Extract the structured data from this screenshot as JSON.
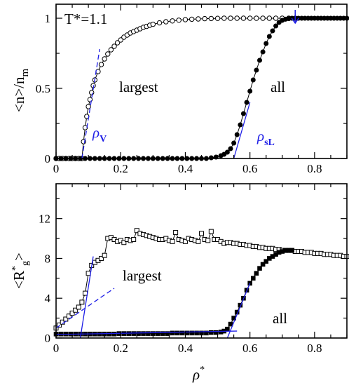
{
  "colors": {
    "fit": "#1e1ee6",
    "axis": "#000000"
  },
  "chart_data": [
    {
      "type": "line",
      "ylabel": "<n>/n",
      "ylabel_sub": "m",
      "xlim": [
        0,
        0.9
      ],
      "ylim": [
        0,
        1.1
      ],
      "xticks": [
        "0",
        "0.2",
        "0.4",
        "0.6",
        "0.8"
      ],
      "yticks": [
        "0",
        "0.5",
        "1"
      ],
      "temp_label": "T*=1.1",
      "labels": {
        "largest": "largest",
        "all": "all",
        "rho_v": "ρ",
        "rho_v_sub": "V",
        "rho_sl": "ρ",
        "rho_sl_sub": "sL"
      },
      "series": [
        {
          "name": "largest",
          "marker": "open-circle",
          "x": [
            0.0,
            0.01,
            0.02,
            0.03,
            0.04,
            0.05,
            0.06,
            0.07,
            0.08,
            0.085,
            0.09,
            0.095,
            0.1,
            0.105,
            0.11,
            0.115,
            0.12,
            0.13,
            0.14,
            0.15,
            0.16,
            0.17,
            0.18,
            0.19,
            0.2,
            0.21,
            0.22,
            0.23,
            0.24,
            0.25,
            0.26,
            0.27,
            0.28,
            0.29,
            0.3,
            0.32,
            0.34,
            0.36,
            0.38,
            0.4,
            0.42,
            0.44,
            0.46,
            0.48,
            0.5,
            0.52,
            0.54,
            0.56,
            0.58,
            0.6,
            0.62,
            0.64,
            0.66,
            0.68,
            0.7,
            0.72,
            0.74
          ],
          "y": [
            0.0,
            0.0,
            0.0,
            0.0,
            0.0,
            0.0,
            0.0,
            0.0,
            0.0,
            0.12,
            0.22,
            0.3,
            0.37,
            0.42,
            0.47,
            0.52,
            0.56,
            0.62,
            0.67,
            0.71,
            0.745,
            0.775,
            0.8,
            0.825,
            0.845,
            0.865,
            0.88,
            0.895,
            0.905,
            0.915,
            0.925,
            0.935,
            0.942,
            0.95,
            0.957,
            0.967,
            0.975,
            0.981,
            0.986,
            0.99,
            0.993,
            0.995,
            0.997,
            0.998,
            0.999,
            1.0,
            1.0,
            1.0,
            1.0,
            1.0,
            1.0,
            1.0,
            1.0,
            1.0,
            1.0,
            1.0,
            1.0
          ]
        },
        {
          "name": "all",
          "marker": "filled-circle",
          "x": [
            0.0,
            0.015,
            0.03,
            0.045,
            0.06,
            0.075,
            0.09,
            0.105,
            0.12,
            0.135,
            0.15,
            0.165,
            0.18,
            0.195,
            0.21,
            0.225,
            0.24,
            0.255,
            0.27,
            0.285,
            0.3,
            0.315,
            0.33,
            0.345,
            0.36,
            0.375,
            0.39,
            0.405,
            0.42,
            0.435,
            0.45,
            0.465,
            0.48,
            0.495,
            0.51,
            0.52,
            0.53,
            0.54,
            0.55,
            0.56,
            0.57,
            0.58,
            0.59,
            0.6,
            0.61,
            0.62,
            0.63,
            0.64,
            0.65,
            0.66,
            0.67,
            0.68,
            0.69,
            0.7,
            0.71,
            0.72,
            0.73,
            0.74,
            0.75,
            0.76,
            0.77,
            0.78,
            0.79,
            0.8,
            0.81,
            0.82,
            0.83,
            0.84,
            0.85,
            0.86,
            0.87,
            0.88,
            0.89,
            0.9
          ],
          "y": [
            0.0,
            0.0,
            0.0,
            0.0,
            0.0,
            0.0,
            0.0,
            0.0,
            0.0,
            0.0,
            0.0,
            0.0,
            0.0,
            0.0,
            0.0,
            0.0,
            0.0,
            0.0,
            0.0,
            0.0,
            0.0,
            0.0,
            0.0,
            0.0,
            0.0,
            0.0,
            0.0,
            0.0,
            0.0,
            0.0,
            0.0,
            0.0,
            0.005,
            0.01,
            0.02,
            0.03,
            0.045,
            0.07,
            0.11,
            0.17,
            0.24,
            0.32,
            0.4,
            0.48,
            0.56,
            0.63,
            0.7,
            0.76,
            0.82,
            0.87,
            0.91,
            0.945,
            0.97,
            0.985,
            0.993,
            0.997,
            1.0,
            1.0,
            1.0,
            1.0,
            1.0,
            1.0,
            1.0,
            1.0,
            1.0,
            1.0,
            1.0,
            1.0,
            1.0,
            1.0,
            1.0,
            1.0,
            1.0,
            1.0
          ]
        }
      ],
      "fit_lines": [
        {
          "style": "dashed",
          "x": [
            0.08,
            0.135
          ],
          "y": [
            0.0,
            0.78
          ]
        },
        {
          "style": "solid",
          "x": [
            0.55,
            0.6
          ],
          "y": [
            0.0,
            0.4
          ]
        }
      ],
      "arrow_x": 0.74
    },
    {
      "type": "line",
      "xlabel": "ρ",
      "ylabel": "<R",
      "xlim": [
        0,
        0.9
      ],
      "ylim": [
        0,
        15.5
      ],
      "xticks": [
        "0",
        "0.2",
        "0.4",
        "0.6",
        "0.8"
      ],
      "yticks": [
        "0",
        "4",
        "8",
        "12"
      ],
      "labels": {
        "largest": "largest",
        "all": "all"
      },
      "series": [
        {
          "name": "largest",
          "marker": "open-square",
          "x": [
            0.0,
            0.01,
            0.02,
            0.03,
            0.04,
            0.05,
            0.06,
            0.07,
            0.08,
            0.09,
            0.1,
            0.11,
            0.12,
            0.13,
            0.14,
            0.15,
            0.16,
            0.17,
            0.18,
            0.19,
            0.2,
            0.21,
            0.22,
            0.23,
            0.24,
            0.25,
            0.26,
            0.27,
            0.28,
            0.29,
            0.3,
            0.31,
            0.32,
            0.33,
            0.34,
            0.35,
            0.36,
            0.37,
            0.38,
            0.39,
            0.4,
            0.41,
            0.42,
            0.43,
            0.44,
            0.45,
            0.46,
            0.47,
            0.48,
            0.49,
            0.5,
            0.51,
            0.52,
            0.53,
            0.54,
            0.55,
            0.56,
            0.57,
            0.58,
            0.59,
            0.6,
            0.61,
            0.62,
            0.63,
            0.64,
            0.65,
            0.66,
            0.67,
            0.68,
            0.69,
            0.7,
            0.71,
            0.72,
            0.73,
            0.74,
            0.75,
            0.76,
            0.77,
            0.78,
            0.79,
            0.8,
            0.81,
            0.82,
            0.83,
            0.84,
            0.85,
            0.86,
            0.87,
            0.88,
            0.89,
            0.9
          ],
          "y": [
            1.0,
            1.3,
            1.6,
            1.9,
            2.2,
            2.5,
            2.8,
            3.1,
            3.6,
            4.5,
            6.5,
            7.3,
            7.6,
            7.8,
            8.0,
            8.3,
            10.0,
            10.1,
            9.9,
            9.7,
            9.8,
            9.6,
            9.9,
            9.8,
            9.9,
            10.8,
            10.5,
            10.4,
            10.3,
            10.2,
            10.1,
            10.0,
            9.9,
            9.9,
            10.0,
            9.8,
            9.7,
            10.6,
            9.9,
            9.8,
            9.7,
            10.0,
            9.9,
            9.8,
            9.7,
            10.5,
            9.9,
            9.8,
            10.7,
            9.9,
            9.9,
            9.7,
            9.5,
            9.6,
            9.6,
            9.5,
            9.5,
            9.4,
            9.4,
            9.3,
            9.3,
            9.2,
            9.2,
            9.1,
            9.1,
            9.0,
            9.0,
            9.0,
            8.9,
            8.9,
            8.8,
            8.8,
            8.8,
            8.8,
            8.7,
            8.7,
            8.7,
            8.6,
            8.6,
            8.6,
            8.5,
            8.5,
            8.5,
            8.4,
            8.4,
            8.4,
            8.3,
            8.3,
            8.3,
            8.2,
            8.2
          ]
        },
        {
          "name": "all",
          "marker": "filled-square",
          "x": [
            0.0,
            0.015,
            0.03,
            0.045,
            0.06,
            0.075,
            0.09,
            0.105,
            0.12,
            0.135,
            0.15,
            0.165,
            0.18,
            0.195,
            0.21,
            0.225,
            0.24,
            0.255,
            0.27,
            0.285,
            0.3,
            0.315,
            0.33,
            0.345,
            0.36,
            0.375,
            0.39,
            0.405,
            0.42,
            0.435,
            0.45,
            0.465,
            0.48,
            0.495,
            0.51,
            0.52,
            0.53,
            0.54,
            0.55,
            0.56,
            0.57,
            0.58,
            0.59,
            0.6,
            0.61,
            0.62,
            0.63,
            0.64,
            0.65,
            0.66,
            0.67,
            0.68,
            0.69,
            0.7,
            0.71,
            0.72,
            0.73
          ],
          "y": [
            0.4,
            0.4,
            0.4,
            0.4,
            0.4,
            0.4,
            0.4,
            0.4,
            0.4,
            0.4,
            0.4,
            0.4,
            0.4,
            0.45,
            0.45,
            0.45,
            0.45,
            0.45,
            0.45,
            0.45,
            0.45,
            0.45,
            0.45,
            0.45,
            0.5,
            0.5,
            0.5,
            0.5,
            0.5,
            0.5,
            0.5,
            0.5,
            0.55,
            0.55,
            0.6,
            0.7,
            0.9,
            1.4,
            2.0,
            2.6,
            3.3,
            4.0,
            4.8,
            5.5,
            6.0,
            6.5,
            7.0,
            7.4,
            7.7,
            8.0,
            8.2,
            8.4,
            8.6,
            8.7,
            8.8,
            8.8,
            8.8
          ]
        }
      ],
      "fit_lines": [
        {
          "style": "solid",
          "x": [
            0.075,
            0.115
          ],
          "y": [
            0.0,
            8.2
          ]
        },
        {
          "style": "dashed",
          "x": [
            0.0,
            0.18
          ],
          "y": [
            1.0,
            5.0
          ]
        },
        {
          "style": "solid",
          "x": [
            0.0,
            0.56
          ],
          "y": [
            0.35,
            0.7
          ]
        },
        {
          "style": "solid",
          "x": [
            0.53,
            0.6
          ],
          "y": [
            0.0,
            5.5
          ]
        }
      ]
    }
  ]
}
